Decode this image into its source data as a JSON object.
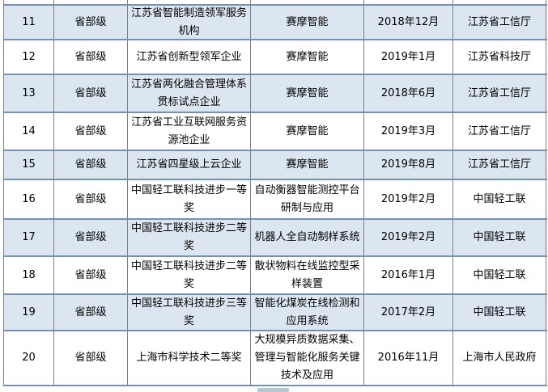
{
  "colors": {
    "row_alt_blue": "#dce6f1",
    "row_white": "#ffffff",
    "h_border": "#7490b4",
    "v_border": "#7f7f7f",
    "scrollbar_thumb": "#b9c6d3"
  },
  "table": {
    "rows": [
      {
        "no": "11",
        "level": "省部级",
        "award": "江苏省智能制造领军服务机构",
        "project": "赛摩智能",
        "date": "2018年12月",
        "issuer": "江苏省工信厅"
      },
      {
        "no": "12",
        "level": "省部级",
        "award": "江苏省创新型领军企业",
        "project": "赛摩智能",
        "date": "2019年1月",
        "issuer": "江苏省科技厅"
      },
      {
        "no": "13",
        "level": "省部级",
        "award": "江苏省两化融合管理体系贯标试点企业",
        "project": "赛摩智能",
        "date": "2018年6月",
        "issuer": "江苏省工信厅"
      },
      {
        "no": "14",
        "level": "省部级",
        "award": "江苏省工业互联网服务资源池企业",
        "project": "赛摩智能",
        "date": "2019年3月",
        "issuer": "江苏省工信厅"
      },
      {
        "no": "15",
        "level": "省部级",
        "award": "江苏省四星级上云企业",
        "project": "赛摩智能",
        "date": "2019年8月",
        "issuer": "江苏省工信厅"
      },
      {
        "no": "16",
        "level": "省部级",
        "award": "中国轻工联科技进步一等奖",
        "project": "自动衡器智能测控平台研制与应用",
        "date": "2019年2月",
        "issuer": "中国轻工联"
      },
      {
        "no": "17",
        "level": "省部级",
        "award": "中国轻工联科技进步二等奖",
        "project": "机器人全自动制样系统",
        "date": "2019年2月",
        "issuer": "中国轻工联"
      },
      {
        "no": "18",
        "level": "省部级",
        "award": "中国轻工联科技进步二等奖",
        "project": "散状物料在线监控型采样装置",
        "date": "2016年1月",
        "issuer": "中国轻工联"
      },
      {
        "no": "19",
        "level": "省部级",
        "award": "中国轻工联科技进步三等奖",
        "project": "智能化煤炭在线检测和应用系统",
        "date": "2017年2月",
        "issuer": "中国轻工联"
      },
      {
        "no": "20",
        "level": "省部级",
        "award": "上海市科学技术二等奖",
        "project": "大规模异质数据采集、管理与智能化服务关键技术及应用",
        "date": "2016年11月",
        "issuer": "上海市人民政府"
      }
    ]
  }
}
